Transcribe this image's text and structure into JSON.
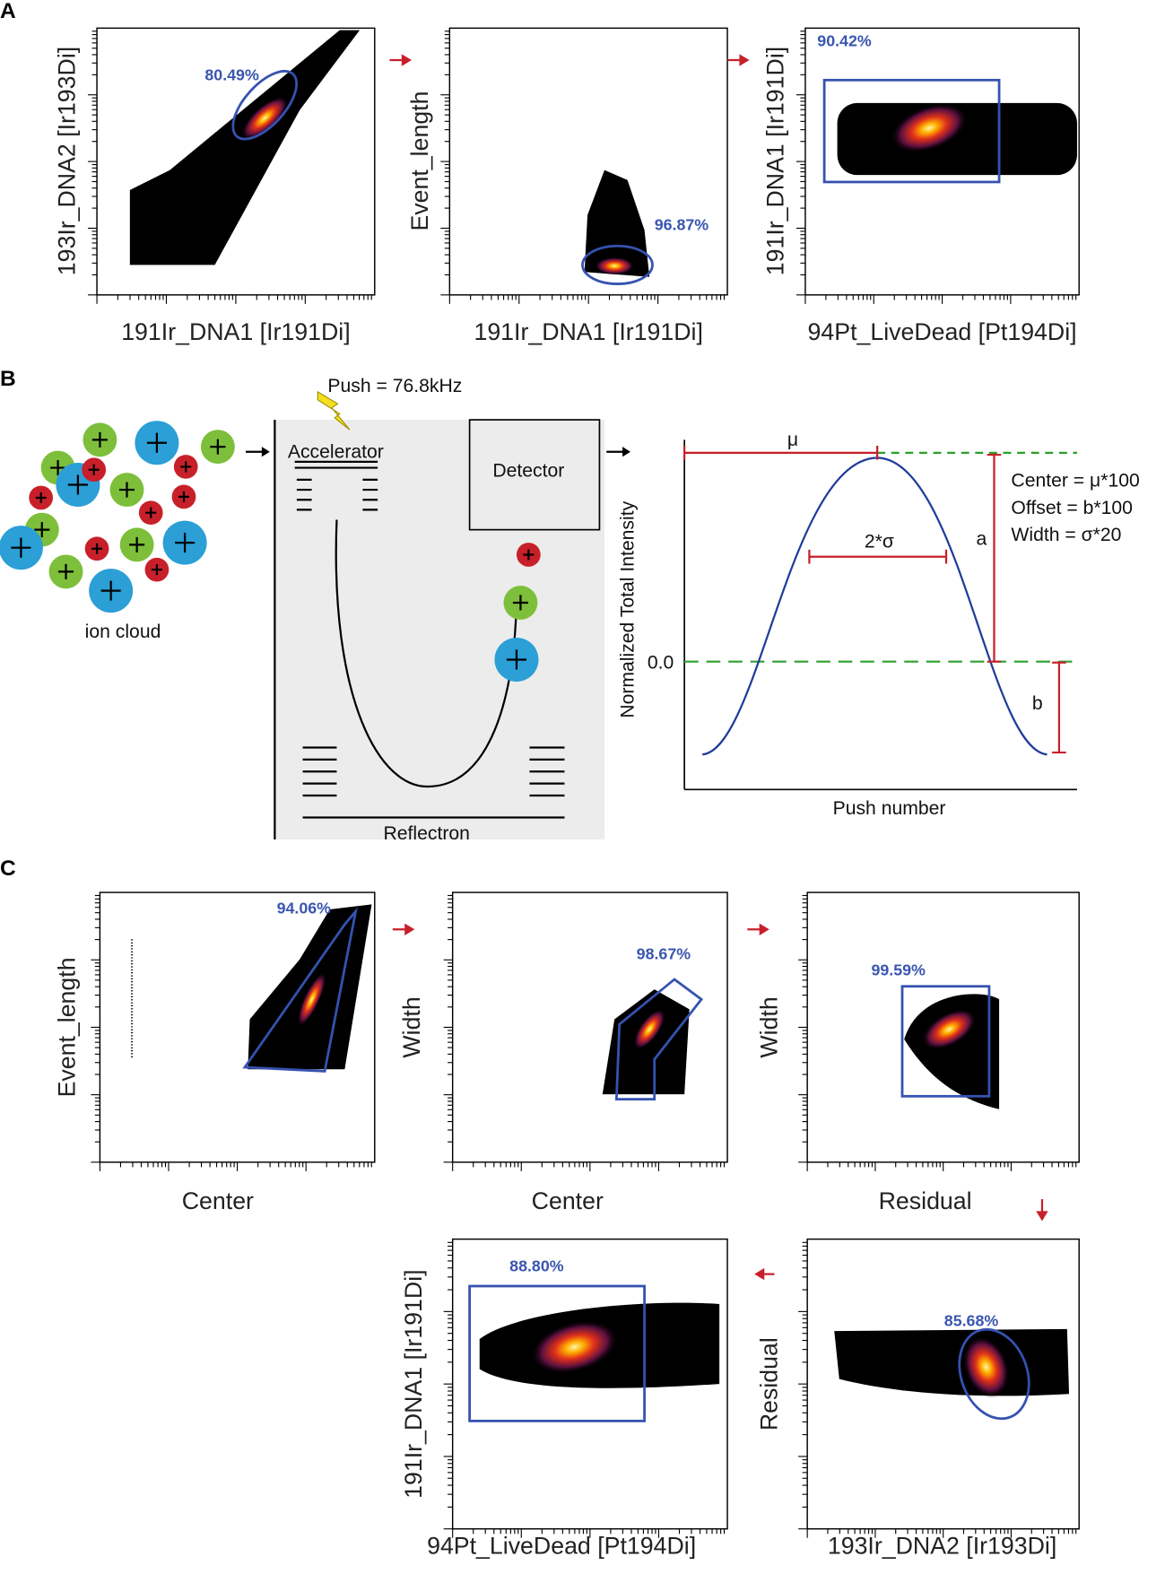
{
  "panel_a": {
    "label": "A",
    "plots": [
      {
        "x_label": "191Ir_DNA1 [Ir191Di]",
        "y_label": "193Ir_DNA2 [Ir193Di]",
        "gate": "80.49%"
      },
      {
        "x_label": "191Ir_DNA1 [Ir191Di]",
        "y_label": "Event_length",
        "gate": "96.87%"
      },
      {
        "x_label": "94Pt_LiveDead [Pt194Di]",
        "y_label": "191Ir_DNA1 [Ir191Di]",
        "gate": "90.42%"
      }
    ]
  },
  "panel_b": {
    "label": "B",
    "ion_cloud": "ion cloud",
    "push": "Push = 76.8kHz",
    "accelerator": "Accelerator",
    "detector": "Detector",
    "reflectron": "Reflectron",
    "plot": {
      "y_label": "Normalized Total Intensity",
      "x_label": "Push number",
      "zero": "0.0",
      "mu": "μ",
      "sigma": "2*σ",
      "a": "a",
      "b": "b",
      "legend": [
        "Center = μ*100",
        "Offset = b*100",
        "Width = σ*20"
      ]
    }
  },
  "panel_c": {
    "label": "C",
    "plots": [
      {
        "x_label": "Center",
        "y_label": "Event_length",
        "gate": "94.06%"
      },
      {
        "x_label": "Center",
        "y_label": "Width",
        "gate": "98.67%"
      },
      {
        "x_label": "Residual",
        "y_label": "Width",
        "gate": "99.59%"
      },
      {
        "x_label": "94Pt_LiveDead [Pt194Di]",
        "y_label": "191Ir_DNA1 [Ir191Di]",
        "gate": "88.80%"
      },
      {
        "x_label": "193Ir_DNA2 [Ir193Di]",
        "y_label": "Residual",
        "gate": "85.68%"
      }
    ]
  }
}
